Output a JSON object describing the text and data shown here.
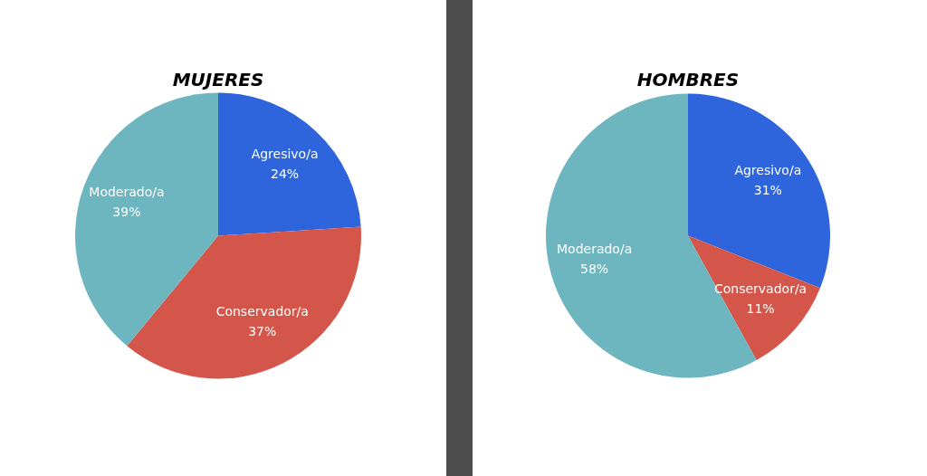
{
  "chart_data": [
    {
      "type": "pie",
      "title": "MUJERES",
      "categories": [
        "Agresivo/a",
        "Conservador/a",
        "Moderado/a"
      ],
      "values": [
        24,
        37,
        39
      ],
      "value_labels": [
        "24%",
        "37%",
        "39%"
      ],
      "colors": [
        "#2e64dc",
        "#d4564a",
        "#6db5bf"
      ]
    },
    {
      "type": "pie",
      "title": "HOMBRES",
      "categories": [
        "Agresivo/a",
        "Conservador/a",
        "Moderado/a"
      ],
      "values": [
        31,
        11,
        58
      ],
      "value_labels": [
        "31%",
        "11%",
        "58%"
      ],
      "colors": [
        "#2e64dc",
        "#d4564a",
        "#6db5bf"
      ]
    }
  ]
}
